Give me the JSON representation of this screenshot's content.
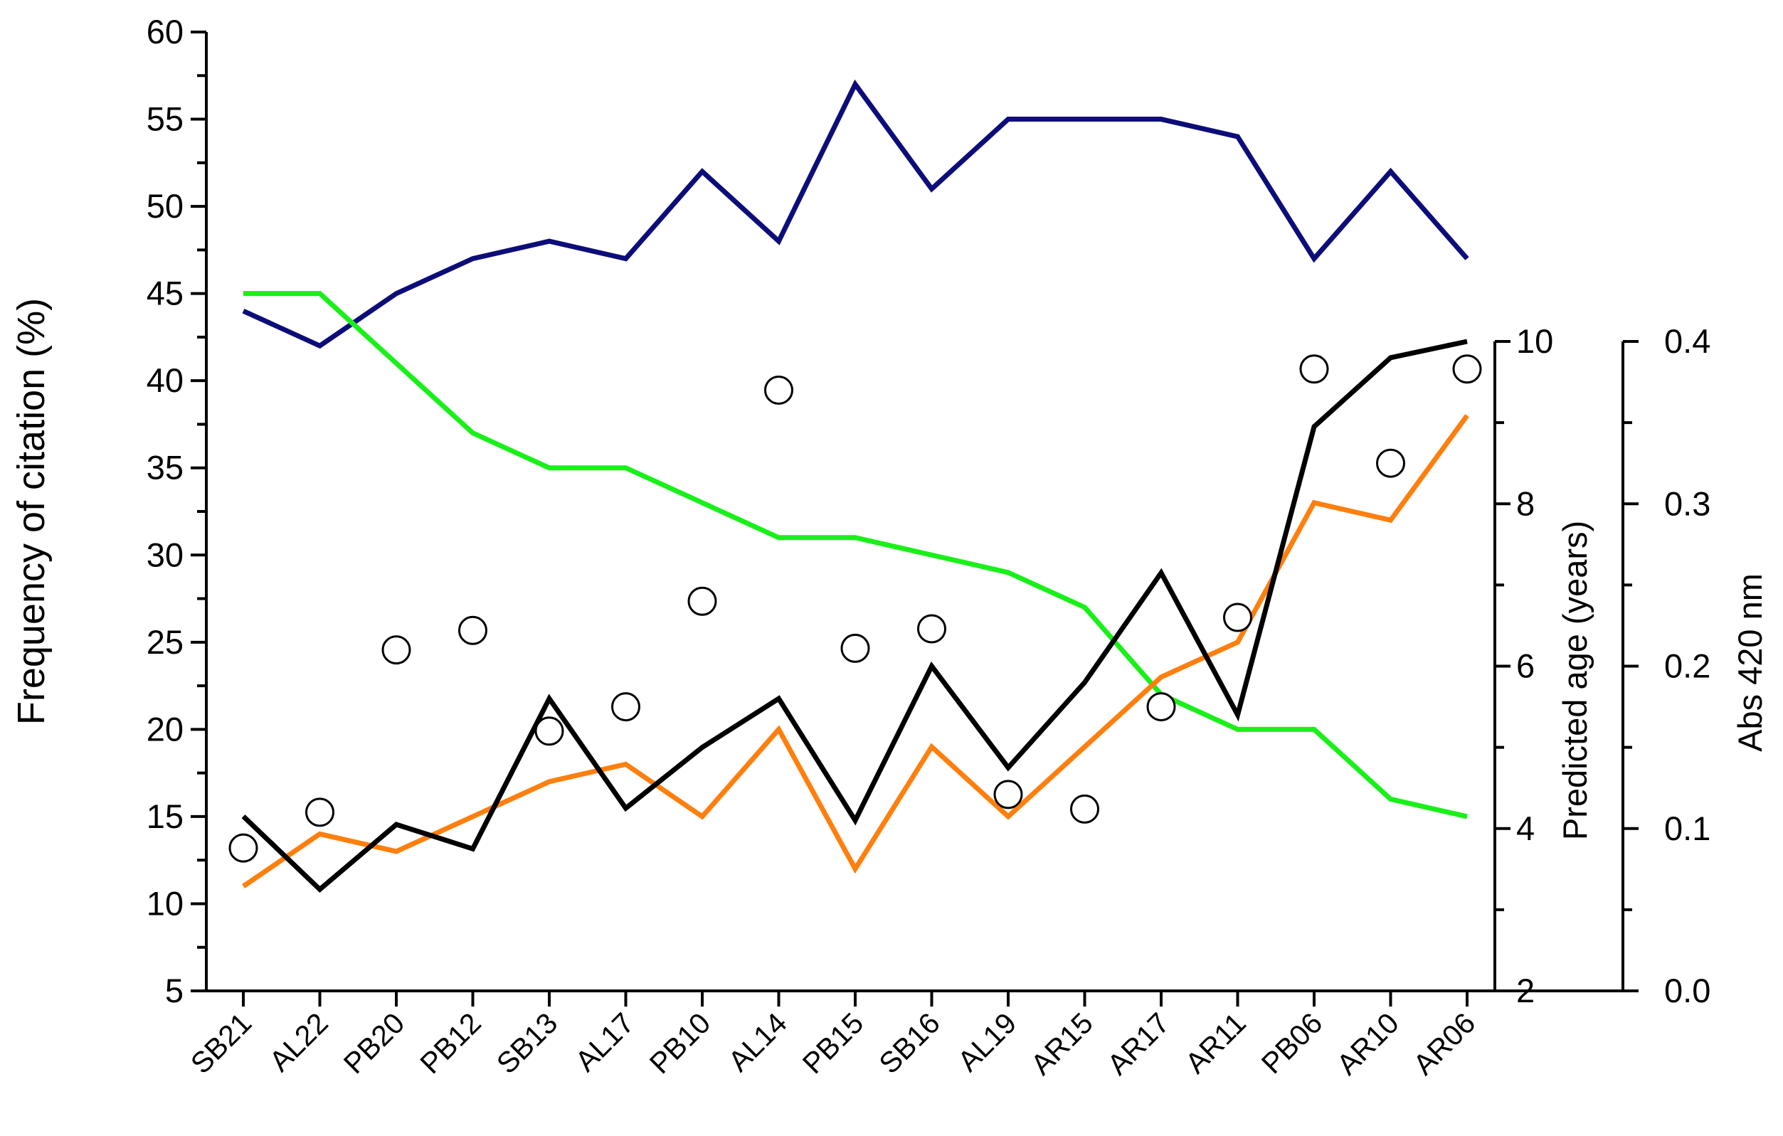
{
  "chart_data": {
    "type": "line",
    "title": "",
    "xlabel": "",
    "categories": [
      "SB21",
      "AL22",
      "PB20",
      "PB12",
      "SB13",
      "AL17",
      "PB10",
      "AL14",
      "PB15",
      "SB16",
      "AL19",
      "AR15",
      "AR17",
      "AR11",
      "PB06",
      "AR10",
      "AR06"
    ],
    "axes": {
      "y_left": {
        "label": "Frequency of citation (%)",
        "range": [
          5,
          60
        ],
        "ticks": [
          5,
          10,
          15,
          20,
          25,
          30,
          35,
          40,
          45,
          50,
          55,
          60
        ]
      },
      "y_right_1": {
        "label": "Predicted age (years)",
        "range": [
          2,
          10
        ],
        "ticks": [
          2,
          4,
          6,
          8,
          10
        ]
      },
      "y_right_2": {
        "label": "Abs 420 nm",
        "range": [
          0.0,
          0.4
        ],
        "ticks": [
          "0.0",
          "0.1",
          "0.2",
          "0.3",
          "0.4"
        ]
      }
    },
    "series": [
      {
        "axis": "y_left",
        "style": "line",
        "color": "#0d0d7a",
        "values": [
          44,
          42,
          45,
          47,
          48,
          47,
          52,
          48,
          57,
          51,
          55,
          55,
          55,
          54,
          47,
          52,
          47
        ]
      },
      {
        "axis": "y_left",
        "style": "line",
        "color": "#19f019",
        "values": [
          45,
          45,
          41,
          37,
          35,
          35,
          33,
          31,
          31,
          30,
          29,
          27,
          22,
          20,
          20,
          16,
          15
        ]
      },
      {
        "axis": "y_left",
        "style": "line",
        "color": "#ff7f0e",
        "values": [
          11,
          14,
          13,
          15,
          17,
          18,
          15,
          20,
          12,
          19,
          15,
          19,
          23,
          25,
          33,
          32,
          38
        ]
      },
      {
        "axis": "y_right_1",
        "style": "line",
        "color": "#000000",
        "values": [
          4.15,
          3.25,
          4.05,
          3.75,
          5.6,
          4.25,
          5.0,
          5.6,
          4.1,
          6.0,
          4.75,
          5.8,
          7.15,
          5.4,
          8.95,
          9.8,
          10.0
        ]
      },
      {
        "axis": "y_right_2",
        "style": "markers",
        "marker": "open-circle",
        "color": "#000000",
        "values": [
          0.088,
          0.11,
          0.21,
          0.222,
          0.16,
          0.175,
          0.24,
          0.37,
          0.211,
          0.223,
          0.121,
          0.112,
          0.175,
          0.23,
          0.383,
          0.325,
          0.383
        ]
      }
    ],
    "grid": false,
    "legend": "none"
  }
}
